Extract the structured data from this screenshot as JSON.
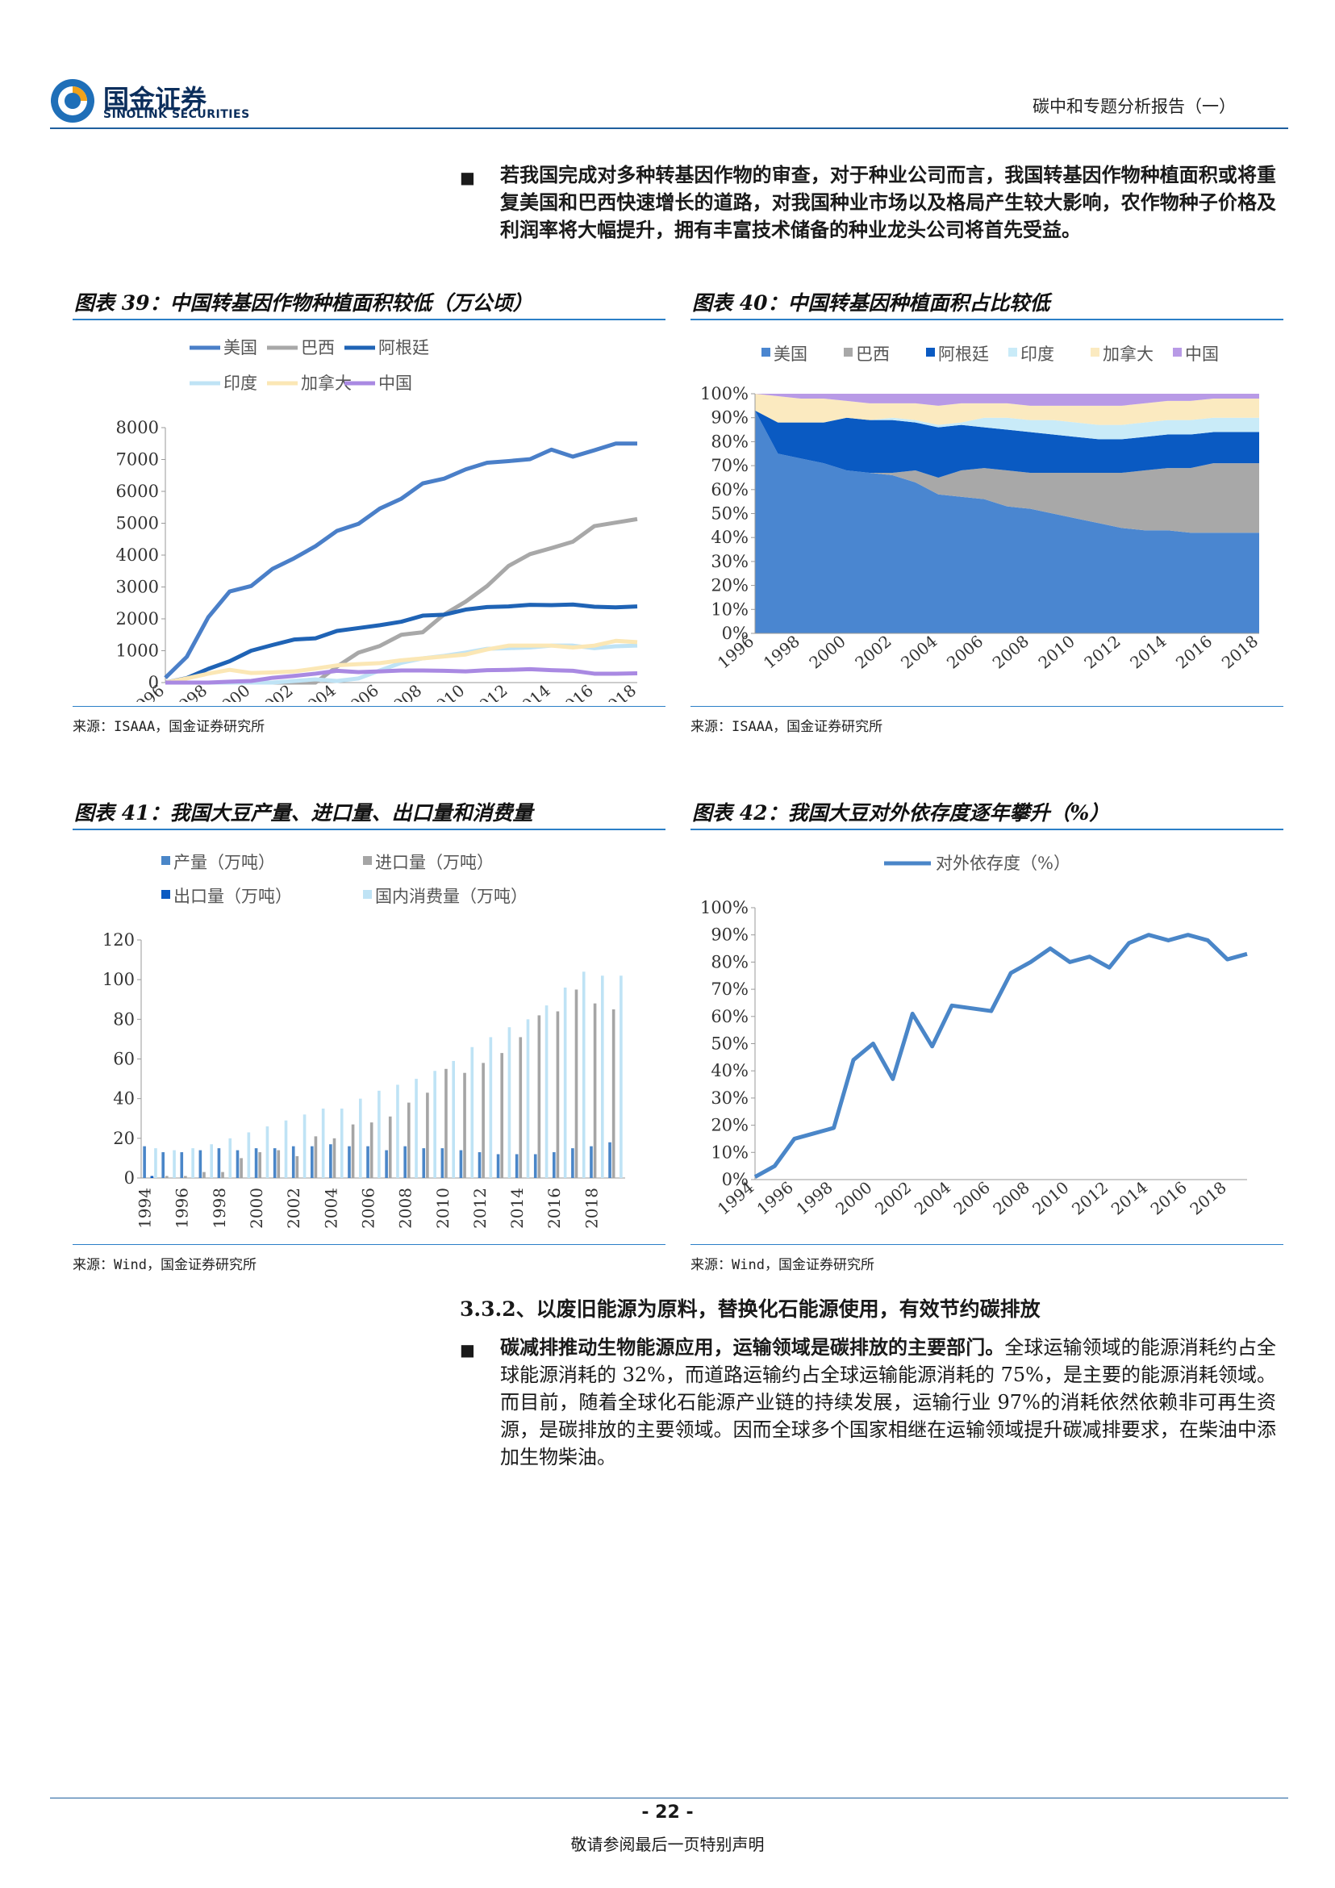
{
  "header": {
    "logo_cn": "国金证券",
    "logo_en": "SINOLINK SECURITIES",
    "report_title": "碳中和专题分析报告（一）"
  },
  "intro": {
    "bullet": "■",
    "text": "若我国完成对多种转基因作物的审查，对于种业公司而言，我国转基因作物种植面积或将重复美国和巴西快速增长的道路，对我国种业市场以及格局产生较大影响，农作物种子价格及利润率将大幅提升，拥有丰富技术储备的种业龙头公司将首先受益。"
  },
  "figures": {
    "f39": {
      "title": "图表 39：中国转基因作物种植面积较低（万公顷）",
      "source": "来源：ISAAA，国金证券研究所"
    },
    "f40": {
      "title": "图表 40：中国转基因种植面积占比较低",
      "source": "来源：ISAAA，国金证券研究所"
    },
    "f41": {
      "title": "图表 41：我国大豆产量、进口量、出口量和消费量",
      "source": "来源：Wind，国金证券研究所"
    },
    "f42": {
      "title": "图表 42：我国大豆对外依存度逐年攀升（%）",
      "source": "来源：Wind，国金证券研究所"
    }
  },
  "section": {
    "heading": "3.3.2、以废旧能源为原料，替换化石能源使用，有效节约碳排放",
    "bullet": "■",
    "lead": "碳减排推动生物能源应用，运输领域是碳排放的主要部门。",
    "text": "全球运输领域的能源消耗约占全球能源消耗的 32%，而道路运输约占全球运输能源消耗的 75%，是主要的能源消耗领域。而目前，随着全球化石能源产业链的持续发展，运输行业 97%的消耗依然依赖非可再生资源，是碳排放的主要领域。因而全球多个国家相继在运输领域提升碳减排要求，在柴油中添加生物柴油。"
  },
  "footer": {
    "page": "- 22 -",
    "disclaimer": "敬请参阅最后一页特别声明"
  },
  "chart_data": [
    {
      "id": "f39",
      "type": "line",
      "x": [
        1996,
        1997,
        1998,
        1999,
        2000,
        2001,
        2002,
        2003,
        2004,
        2005,
        2006,
        2007,
        2008,
        2009,
        2010,
        2011,
        2012,
        2013,
        2014,
        2015,
        2016,
        2017,
        2018
      ],
      "x_ticks": [
        "1996",
        "1998",
        "2000",
        "2002",
        "2004",
        "2006",
        "2008",
        "2010",
        "2012",
        "2014",
        "2016",
        "2018"
      ],
      "ylim": [
        0,
        8000
      ],
      "y_ticks": [
        "0",
        "1000",
        "2000",
        "3000",
        "4000",
        "5000",
        "6000",
        "7000",
        "8000"
      ],
      "legend_placement": "top",
      "series": [
        {
          "name": "美国",
          "color": "#4a7fc8",
          "values": [
            150,
            810,
            2050,
            2860,
            3030,
            3570,
            3900,
            4280,
            4760,
            4980,
            5460,
            5770,
            6250,
            6400,
            6690,
            6900,
            6950,
            7010,
            7310,
            7090,
            7290,
            7500,
            7500
          ]
        },
        {
          "name": "巴西",
          "color": "#a8a8a8",
          "values": [
            0,
            0,
            0,
            0,
            0,
            0,
            0,
            0,
            500,
            940,
            1150,
            1500,
            1580,
            2140,
            2540,
            3030,
            3660,
            4030,
            4220,
            4420,
            4910,
            5020,
            5130
          ]
        },
        {
          "name": "阿根廷",
          "color": "#1f63b5",
          "values": [
            0,
            140,
            430,
            670,
            1000,
            1180,
            1350,
            1390,
            1620,
            1710,
            1800,
            1910,
            2100,
            2130,
            2290,
            2370,
            2390,
            2440,
            2430,
            2450,
            2380,
            2360,
            2390
          ]
        },
        {
          "name": "印度",
          "color": "#bfe3f5",
          "values": [
            0,
            0,
            0,
            0,
            0,
            0,
            50,
            100,
            50,
            130,
            380,
            620,
            760,
            840,
            940,
            1060,
            1080,
            1100,
            1160,
            1160,
            1080,
            1140,
            1160
          ]
        },
        {
          "name": "加拿大",
          "color": "#fbe7b5",
          "values": [
            0,
            130,
            280,
            400,
            300,
            320,
            350,
            440,
            540,
            580,
            610,
            700,
            760,
            820,
            880,
            1040,
            1160,
            1160,
            1160,
            1100,
            1160,
            1310,
            1270
          ]
        },
        {
          "name": "中国",
          "color": "#a989e2",
          "values": [
            0,
            0,
            0,
            30,
            50,
            150,
            210,
            280,
            370,
            330,
            350,
            380,
            380,
            370,
            350,
            390,
            400,
            420,
            390,
            370,
            280,
            280,
            290
          ]
        }
      ]
    },
    {
      "id": "f40",
      "type": "area",
      "stacked": "percent",
      "x": [
        1996,
        1997,
        1998,
        1999,
        2000,
        2001,
        2002,
        2003,
        2004,
        2005,
        2006,
        2007,
        2008,
        2009,
        2010,
        2011,
        2012,
        2013,
        2014,
        2015,
        2016,
        2017,
        2018
      ],
      "x_ticks": [
        "1996",
        "1998",
        "2000",
        "2002",
        "2004",
        "2006",
        "2008",
        "2010",
        "2012",
        "2014",
        "2016",
        "2018"
      ],
      "ylim": [
        0,
        100
      ],
      "y_ticks": [
        "0%",
        "10%",
        "20%",
        "30%",
        "40%",
        "50%",
        "60%",
        "70%",
        "80%",
        "90%",
        "100%"
      ],
      "legend_placement": "top",
      "series": [
        {
          "name": "美国",
          "color": "#4a86d0",
          "values": [
            93,
            75,
            73,
            71,
            68,
            67,
            66,
            63,
            58,
            57,
            56,
            53,
            52,
            50,
            48,
            46,
            44,
            43,
            43,
            42,
            42,
            42,
            42
          ]
        },
        {
          "name": "巴西",
          "color": "#a8a8a8",
          "values": [
            0,
            0,
            0,
            0,
            0,
            0,
            1,
            5,
            7,
            11,
            13,
            15,
            15,
            17,
            19,
            21,
            23,
            25,
            26,
            27,
            29,
            29,
            29
          ]
        },
        {
          "name": "阿根廷",
          "color": "#0a5ac2",
          "values": [
            0,
            13,
            15,
            17,
            22,
            22,
            22,
            20,
            21,
            19,
            17,
            17,
            17,
            16,
            15,
            14,
            14,
            14,
            14,
            14,
            13,
            13,
            13
          ]
        },
        {
          "name": "印度",
          "color": "#c9ebf8",
          "values": [
            0,
            0,
            0,
            0,
            0,
            0,
            1,
            1,
            1,
            1,
            4,
            5,
            5,
            6,
            6,
            6,
            6,
            6,
            6,
            6,
            6,
            6,
            6
          ]
        },
        {
          "name": "加拿大",
          "color": "#fbeac0",
          "values": [
            7,
            11,
            10,
            10,
            7,
            7,
            6,
            7,
            8,
            8,
            6,
            6,
            6,
            6,
            7,
            8,
            8,
            8,
            8,
            8,
            8,
            8,
            8
          ]
        },
        {
          "name": "中国",
          "color": "#b89ae6",
          "values": [
            0,
            1,
            2,
            2,
            3,
            4,
            4,
            4,
            5,
            4,
            4,
            4,
            5,
            5,
            5,
            5,
            5,
            4,
            3,
            3,
            2,
            2,
            2
          ]
        }
      ]
    },
    {
      "id": "f41",
      "type": "bar",
      "x": [
        1994,
        1995,
        1996,
        1997,
        1998,
        1999,
        2000,
        2001,
        2002,
        2003,
        2004,
        2005,
        2006,
        2007,
        2008,
        2009,
        2010,
        2011,
        2012,
        2013,
        2014,
        2015,
        2016,
        2017,
        2018,
        2019
      ],
      "x_ticks": [
        "1994",
        "1996",
        "1998",
        "2000",
        "2002",
        "2004",
        "2006",
        "2008",
        "2010",
        "2012",
        "2014",
        "2016",
        "2018"
      ],
      "ylim": [
        0,
        120
      ],
      "y_ticks": [
        "0",
        "20",
        "40",
        "60",
        "80",
        "100",
        "120"
      ],
      "legend_placement": "top",
      "series": [
        {
          "name": "产量（万吨）",
          "color": "#4a86c8",
          "values": [
            16,
            13,
            13,
            14,
            15,
            14,
            15,
            15,
            16,
            16,
            17,
            16,
            16,
            14,
            16,
            15,
            15,
            14,
            13,
            12,
            12,
            12,
            13,
            15,
            16,
            18
          ]
        },
        {
          "name": "进口量（万吨）",
          "color": "#a5a5a5",
          "values": [
            0,
            1,
            1,
            3,
            3,
            10,
            13,
            14,
            11,
            21,
            20,
            27,
            28,
            31,
            38,
            43,
            55,
            53,
            58,
            63,
            71,
            82,
            84,
            95,
            88,
            85
          ]
        },
        {
          "name": "出口量（万吨）",
          "color": "#0a5ac2",
          "values": [
            1,
            0,
            0,
            0,
            0,
            0,
            0,
            0,
            0,
            0,
            0,
            0,
            0,
            0,
            0,
            0,
            0,
            0,
            0,
            0,
            0,
            0,
            0,
            0,
            0,
            0
          ]
        },
        {
          "name": "国内消费量（万吨）",
          "color": "#bfe3f5",
          "values": [
            15,
            14,
            15,
            17,
            20,
            23,
            26,
            29,
            32,
            35,
            35,
            40,
            44,
            47,
            50,
            54,
            59,
            66,
            71,
            76,
            80,
            87,
            96,
            104,
            102,
            102
          ]
        }
      ]
    },
    {
      "id": "f42",
      "type": "line",
      "x": [
        1994,
        1995,
        1996,
        1997,
        1998,
        1999,
        2000,
        2001,
        2002,
        2003,
        2004,
        2005,
        2006,
        2007,
        2008,
        2009,
        2010,
        2011,
        2012,
        2013,
        2014,
        2015,
        2016,
        2017,
        2018,
        2019
      ],
      "x_ticks": [
        "1994",
        "1996",
        "1998",
        "2000",
        "2002",
        "2004",
        "2006",
        "2008",
        "2010",
        "2012",
        "2014",
        "2016",
        "2018"
      ],
      "ylim": [
        0,
        100
      ],
      "y_ticks": [
        "0%",
        "10%",
        "20%",
        "30%",
        "40%",
        "50%",
        "60%",
        "70%",
        "80%",
        "90%",
        "100%"
      ],
      "legend_placement": "top",
      "series": [
        {
          "name": "对外依存度（%）",
          "color": "#4a86c8",
          "values": [
            1,
            5,
            15,
            17,
            19,
            44,
            50,
            37,
            61,
            49,
            64,
            63,
            62,
            76,
            80,
            85,
            80,
            82,
            78,
            87,
            90,
            88,
            90,
            88,
            81,
            83
          ]
        }
      ]
    }
  ]
}
